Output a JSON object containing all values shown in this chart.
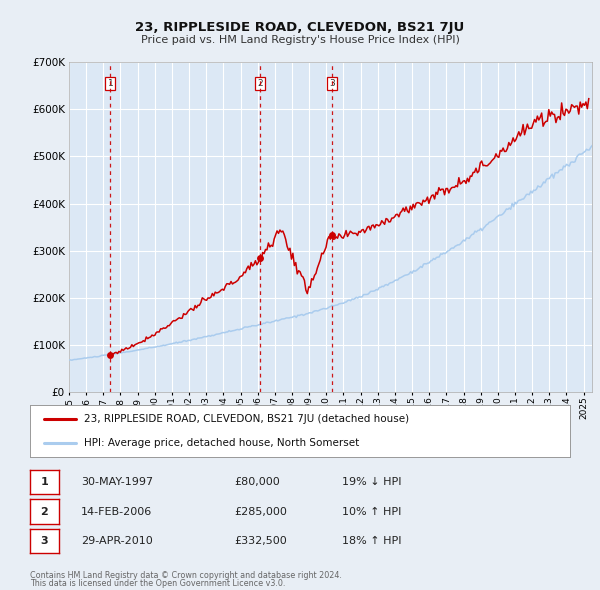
{
  "title": "23, RIPPLESIDE ROAD, CLEVEDON, BS21 7JU",
  "subtitle": "Price paid vs. HM Land Registry's House Price Index (HPI)",
  "bg_color": "#e8eef5",
  "plot_bg_color": "#dce8f5",
  "grid_color": "#ffffff",
  "bottom_bg_color": "#f0f0f0",
  "red_line_color": "#cc0000",
  "blue_line_color": "#aaccee",
  "sale_marker_color": "#cc0000",
  "vline_color": "#cc0000",
  "ylim": [
    0,
    700000
  ],
  "yticks": [
    0,
    100000,
    200000,
    300000,
    400000,
    500000,
    600000,
    700000
  ],
  "ytick_labels": [
    "£0",
    "£100K",
    "£200K",
    "£300K",
    "£400K",
    "£500K",
    "£600K",
    "£700K"
  ],
  "xmin_year": 1995.0,
  "xmax_year": 2025.5,
  "xtick_years": [
    1995,
    1996,
    1997,
    1998,
    1999,
    2000,
    2001,
    2002,
    2003,
    2004,
    2005,
    2006,
    2007,
    2008,
    2009,
    2010,
    2011,
    2012,
    2013,
    2014,
    2015,
    2016,
    2017,
    2018,
    2019,
    2020,
    2021,
    2022,
    2023,
    2024,
    2025
  ],
  "sale1_year": 1997.41,
  "sale1_price": 80000,
  "sale1_label": "1",
  "sale2_year": 2006.12,
  "sale2_price": 285000,
  "sale2_label": "2",
  "sale3_year": 2010.32,
  "sale3_price": 332500,
  "sale3_label": "3",
  "legend_entries": [
    "23, RIPPLESIDE ROAD, CLEVEDON, BS21 7JU (detached house)",
    "HPI: Average price, detached house, North Somerset"
  ],
  "table_rows": [
    [
      "1",
      "30-MAY-1997",
      "£80,000",
      "19% ↓ HPI"
    ],
    [
      "2",
      "14-FEB-2006",
      "£285,000",
      "10% ↑ HPI"
    ],
    [
      "3",
      "29-APR-2010",
      "£332,500",
      "18% ↑ HPI"
    ]
  ],
  "footnote1": "Contains HM Land Registry data © Crown copyright and database right 2024.",
  "footnote2": "This data is licensed under the Open Government Licence v3.0."
}
